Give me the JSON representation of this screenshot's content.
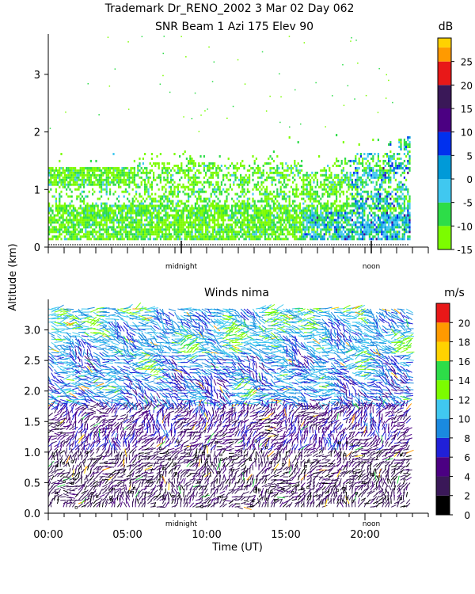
{
  "header": {
    "title_line1": "Trademark Dr_RENO_2002    3 Mar 02 Day 062",
    "title_line2": "SNR Beam  1 Azi 175 Elev 90"
  },
  "colors": {
    "snr_scale": [
      "#7cfc00",
      "#2ddd48",
      "#40c8f0",
      "#009ad8",
      "#0030ee",
      "#4b0082",
      "#3a1858",
      "#e81818",
      "#ff9a00",
      "#ffd200",
      "#ffff00"
    ],
    "wind_scale": [
      "#000000",
      "#3a1858",
      "#4b0082",
      "#2020d8",
      "#1a8ae0",
      "#40c8f0",
      "#7cfc00",
      "#2ddd48",
      "#ffd200",
      "#ff9a00",
      "#e81818",
      "#c80000"
    ]
  },
  "chart_data": [
    {
      "type": "heatmap",
      "title": "Trademark Dr_RENO_2002    3 Mar 02 Day 062 / SNR Beam  1 Azi 175 Elev 90",
      "ylabel": "Altitude (km)",
      "xlim": [
        0,
        24
      ],
      "ylim": [
        0,
        3.7
      ],
      "y_ticks": [
        0,
        1,
        2,
        3
      ],
      "markers": [
        {
          "label": "midnight",
          "x": 8.4
        },
        {
          "label": "noon",
          "x": 20.4
        }
      ],
      "colorbar": {
        "unit": "dB",
        "range": [
          -15,
          30
        ],
        "ticks": [
          -15,
          -10,
          -5,
          0,
          5,
          10,
          15,
          20,
          25
        ]
      },
      "data_range": {
        "x": [
          0,
          22.8
        ],
        "y": [
          0.12,
          1.95
        ]
      }
    },
    {
      "type": "scatter",
      "title": "Winds nima",
      "xlabel": "Time (UT)",
      "ylabel": "Altitude (km)",
      "xlim": [
        0,
        24
      ],
      "ylim": [
        0,
        3.5
      ],
      "x_ticks": [
        {
          "v": 0,
          "label": "00:00"
        },
        {
          "v": 5,
          "label": "05:00"
        },
        {
          "v": 10,
          "label": "10:00"
        },
        {
          "v": 15,
          "label": "15:00"
        },
        {
          "v": 20,
          "label": "20:00"
        }
      ],
      "y_ticks": [
        0,
        0.5,
        1.0,
        1.5,
        2.0,
        2.5,
        3.0
      ],
      "markers": [
        {
          "label": "midnight",
          "x": 8.4
        },
        {
          "label": "noon",
          "x": 20.4
        }
      ],
      "colorbar": {
        "unit": "m/s",
        "range": [
          0,
          22
        ],
        "ticks": [
          0,
          2,
          4,
          6,
          8,
          10,
          12,
          14,
          16,
          18,
          20
        ]
      },
      "data_range": {
        "x": [
          0,
          22.8
        ],
        "y": [
          0.1,
          3.4
        ]
      }
    }
  ]
}
